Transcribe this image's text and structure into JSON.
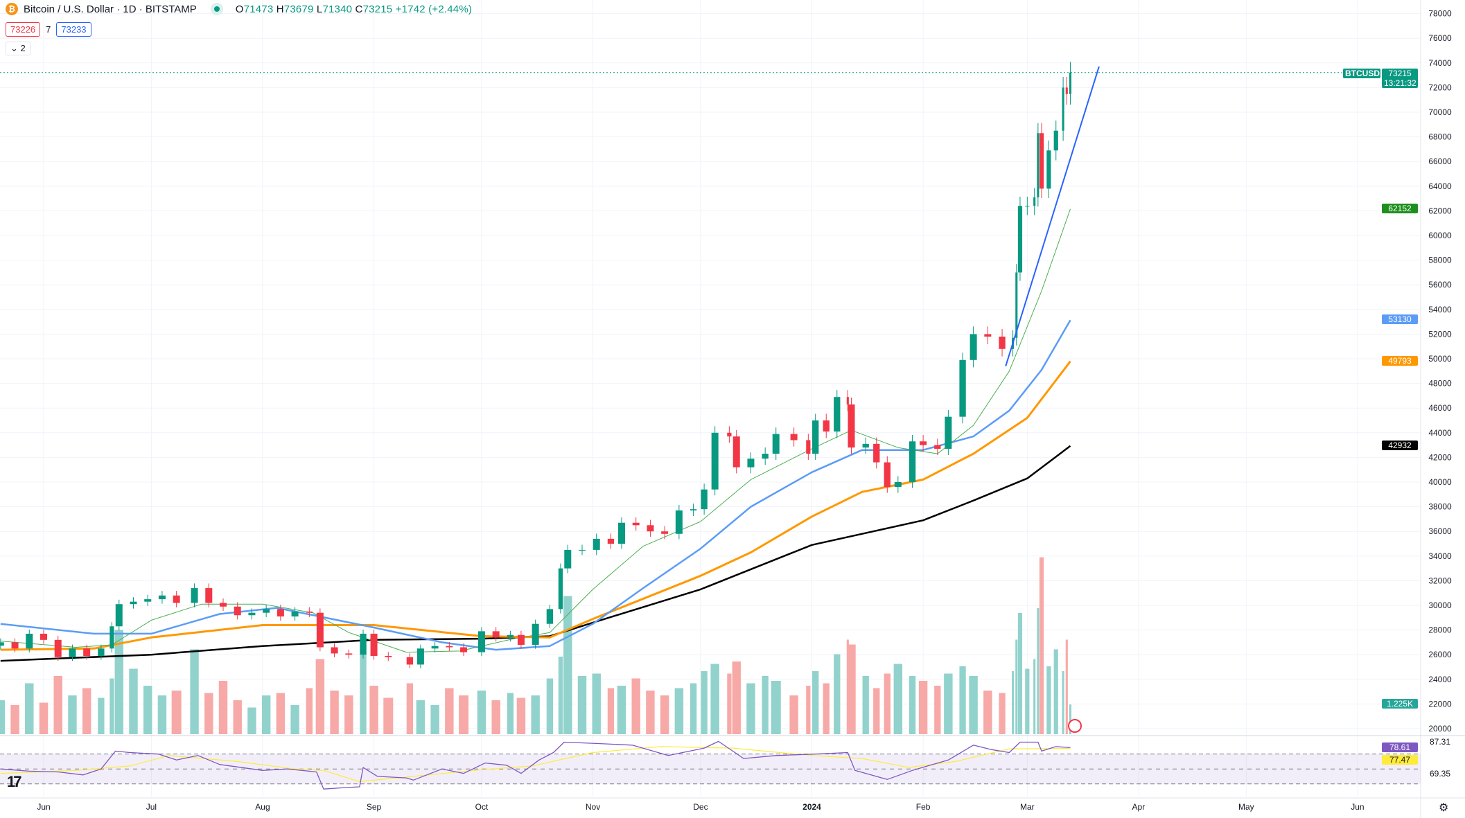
{
  "header": {
    "symbol_title": "Bitcoin / U.S. Dollar · 1D · BITSTAMP",
    "open_label": "O",
    "open": "71473",
    "high_label": "H",
    "high": "73679",
    "low_label": "L",
    "low": "71340",
    "close_label": "C",
    "close": "73215",
    "change": "+1742 (+2.44%)",
    "sell_price": "73226",
    "spread": "7",
    "buy_price": "73233",
    "collapse_label": "2",
    "logo_icon": "bitcoin-icon"
  },
  "colors": {
    "up": "#089981",
    "down": "#f23645",
    "vol_up": "#92d2cc",
    "vol_down": "#f7a9a7",
    "sma20": "#4caf50",
    "ma50": "#5b9cf6",
    "ma100": "#ff9800",
    "ma200": "#000000",
    "trendline": "#2962ff",
    "rsi": "#7e57c2",
    "rsi_ma": "#ffeb3b"
  },
  "badges": {
    "symbol": "BTCUSD",
    "last_price": "73215",
    "countdown": "13:21:32",
    "sma20": "62152",
    "ma50": "53130",
    "ma100": "49793",
    "ma200": "42932",
    "volume": "1.225K",
    "rsi_top": "87.31",
    "rsi": "78.61",
    "rsi_ma": "77.47",
    "rsi_bottom": "69.35"
  },
  "chart_data": {
    "type": "candlestick",
    "price_axis": {
      "ticks": [
        "20000",
        "22000",
        "24000",
        "26000",
        "28000",
        "30000",
        "32000",
        "34000",
        "36000",
        "38000",
        "40000",
        "42000",
        "44000",
        "46000",
        "48000",
        "50000",
        "52000",
        "54000",
        "56000",
        "58000",
        "60000",
        "62000",
        "64000",
        "66000",
        "68000",
        "70000",
        "72000",
        "74000",
        "76000",
        "78000"
      ],
      "range": [
        20000,
        78000
      ]
    },
    "time_axis": {
      "ticks": [
        [
          "2023-06-01",
          "Jun"
        ],
        [
          "2023-07-01",
          "Jul"
        ],
        [
          "2023-08-01",
          "Aug"
        ],
        [
          "2023-09-01",
          "Sep"
        ],
        [
          "2023-10-01",
          "Oct"
        ],
        [
          "2023-11-01",
          "Nov"
        ],
        [
          "2023-12-01",
          "Dec"
        ],
        [
          "2024-01-01",
          "2024"
        ],
        [
          "2024-02-01",
          "Feb"
        ],
        [
          "2024-03-01",
          "Mar"
        ],
        [
          "2024-04-01",
          "Apr"
        ],
        [
          "2024-05-01",
          "May"
        ],
        [
          "2024-06-01",
          "Jun"
        ]
      ]
    },
    "price": [
      [
        "2023-05-20",
        27000
      ],
      [
        "2023-05-24",
        26500
      ],
      [
        "2023-05-28",
        27700
      ],
      [
        "2023-06-01",
        27200
      ],
      [
        "2023-06-05",
        25800
      ],
      [
        "2023-06-09",
        26500
      ],
      [
        "2023-06-13",
        25900
      ],
      [
        "2023-06-17",
        26500
      ],
      [
        "2023-06-20",
        28300
      ],
      [
        "2023-06-22",
        30100
      ],
      [
        "2023-06-26",
        30300
      ],
      [
        "2023-06-30",
        30500
      ],
      [
        "2023-07-04",
        30800
      ],
      [
        "2023-07-08",
        30200
      ],
      [
        "2023-07-13",
        31400
      ],
      [
        "2023-07-17",
        30200
      ],
      [
        "2023-07-21",
        29900
      ],
      [
        "2023-07-25",
        29200
      ],
      [
        "2023-07-29",
        29400
      ],
      [
        "2023-08-02",
        29700
      ],
      [
        "2023-08-06",
        29100
      ],
      [
        "2023-08-10",
        29500
      ],
      [
        "2023-08-14",
        29400
      ],
      [
        "2023-08-17",
        26600
      ],
      [
        "2023-08-21",
        26100
      ],
      [
        "2023-08-25",
        26000
      ],
      [
        "2023-08-29",
        27700
      ],
      [
        "2023-09-01",
        25900
      ],
      [
        "2023-09-05",
        25800
      ],
      [
        "2023-09-11",
        25200
      ],
      [
        "2023-09-14",
        26500
      ],
      [
        "2023-09-18",
        26700
      ],
      [
        "2023-09-22",
        26600
      ],
      [
        "2023-09-26",
        26200
      ],
      [
        "2023-10-01",
        27900
      ],
      [
        "2023-10-05",
        27400
      ],
      [
        "2023-10-09",
        27600
      ],
      [
        "2023-10-12",
        26800
      ],
      [
        "2023-10-16",
        28500
      ],
      [
        "2023-10-20",
        29700
      ],
      [
        "2023-10-23",
        33000
      ],
      [
        "2023-10-25",
        34500
      ],
      [
        "2023-10-29",
        34500
      ],
      [
        "2023-11-02",
        35400
      ],
      [
        "2023-11-06",
        35000
      ],
      [
        "2023-11-09",
        36700
      ],
      [
        "2023-11-13",
        36500
      ],
      [
        "2023-11-17",
        36000
      ],
      [
        "2023-11-21",
        35800
      ],
      [
        "2023-11-25",
        37700
      ],
      [
        "2023-11-29",
        37800
      ],
      [
        "2023-12-02",
        39400
      ],
      [
        "2023-12-05",
        44000
      ],
      [
        "2023-12-09",
        43700
      ],
      [
        "2023-12-11",
        41200
      ],
      [
        "2023-12-15",
        41900
      ],
      [
        "2023-12-19",
        42300
      ],
      [
        "2023-12-22",
        43900
      ],
      [
        "2023-12-27",
        43400
      ],
      [
        "2023-12-31",
        42300
      ],
      [
        "2024-01-02",
        45000
      ],
      [
        "2024-01-05",
        44100
      ],
      [
        "2024-01-08",
        46900
      ],
      [
        "2024-01-11",
        46300
      ],
      [
        "2024-01-12",
        42800
      ],
      [
        "2024-01-16",
        43100
      ],
      [
        "2024-01-19",
        41600
      ],
      [
        "2024-01-22",
        39600
      ],
      [
        "2024-01-25",
        40000
      ],
      [
        "2024-01-29",
        43300
      ],
      [
        "2024-02-01",
        43000
      ],
      [
        "2024-02-05",
        42700
      ],
      [
        "2024-02-08",
        45300
      ],
      [
        "2024-02-12",
        49900
      ],
      [
        "2024-02-15",
        52000
      ],
      [
        "2024-02-19",
        51800
      ],
      [
        "2024-02-23",
        50800
      ],
      [
        "2024-02-26",
        51700
      ],
      [
        "2024-02-27",
        57000
      ],
      [
        "2024-02-28",
        62400
      ],
      [
        "2024-03-01",
        62400
      ],
      [
        "2024-03-03",
        63100
      ],
      [
        "2024-03-04",
        68300
      ],
      [
        "2024-03-05",
        63800
      ],
      [
        "2024-03-07",
        66900
      ],
      [
        "2024-03-09",
        68500
      ],
      [
        "2024-03-11",
        72000
      ],
      [
        "2024-03-12",
        71473
      ],
      [
        "2024-03-13",
        73215
      ]
    ],
    "volume_k": [
      1.4,
      1.2,
      2.1,
      1.3,
      2.4,
      1.6,
      1.9,
      1.5,
      2.3,
      4.3,
      2.7,
      2.0,
      1.6,
      1.8,
      3.5,
      1.7,
      2.2,
      1.4,
      1.1,
      1.6,
      1.7,
      1.2,
      1.9,
      3.1,
      1.8,
      1.6,
      3.7,
      2.0,
      1.5,
      2.1,
      1.4,
      1.2,
      1.9,
      1.6,
      1.8,
      1.4,
      1.7,
      1.5,
      1.6,
      2.3,
      3.2,
      5.7,
      2.4,
      2.5,
      1.9,
      2.0,
      2.3,
      1.8,
      1.6,
      1.9,
      2.1,
      2.6,
      2.9,
      2.5,
      3.0,
      2.1,
      2.4,
      2.2,
      1.6,
      2.0,
      2.6,
      2.1,
      3.3,
      3.9,
      3.7,
      2.4,
      1.9,
      2.5,
      2.9,
      2.4,
      2.2,
      2.0,
      2.5,
      2.8,
      2.4,
      1.8,
      1.7,
      2.6,
      3.9,
      5.0,
      2.7,
      3.1,
      5.2,
      7.3,
      2.8,
      3.5,
      2.6,
      3.9,
      1.225
    ],
    "sma20": [
      [
        "2023-05-20",
        27100
      ],
      [
        "2023-06-10",
        26600
      ],
      [
        "2023-06-20",
        26800
      ],
      [
        "2023-07-01",
        28800
      ],
      [
        "2023-07-15",
        30100
      ],
      [
        "2023-08-01",
        30100
      ],
      [
        "2023-08-15",
        29400
      ],
      [
        "2023-08-25",
        27800
      ],
      [
        "2023-09-10",
        26200
      ],
      [
        "2023-09-25",
        26300
      ],
      [
        "2023-10-10",
        27300
      ],
      [
        "2023-10-20",
        27800
      ],
      [
        "2023-11-01",
        31300
      ],
      [
        "2023-11-15",
        34800
      ],
      [
        "2023-12-01",
        36800
      ],
      [
        "2023-12-15",
        40200
      ],
      [
        "2024-01-01",
        42700
      ],
      [
        "2024-01-12",
        44200
      ],
      [
        "2024-01-25",
        42800
      ],
      [
        "2024-02-05",
        42300
      ],
      [
        "2024-02-15",
        44600
      ],
      [
        "2024-02-25",
        49000
      ],
      [
        "2024-03-05",
        55500
      ],
      [
        "2024-03-13",
        62152
      ]
    ],
    "ma50": [
      [
        "2023-05-20",
        28500
      ],
      [
        "2023-06-15",
        27700
      ],
      [
        "2023-07-01",
        27700
      ],
      [
        "2023-07-20",
        29300
      ],
      [
        "2023-08-05",
        29800
      ],
      [
        "2023-09-01",
        28200
      ],
      [
        "2023-09-20",
        27000
      ],
      [
        "2023-10-05",
        26400
      ],
      [
        "2023-10-20",
        26700
      ],
      [
        "2023-11-01",
        28500
      ],
      [
        "2023-11-15",
        31400
      ],
      [
        "2023-12-01",
        34600
      ],
      [
        "2023-12-15",
        38000
      ],
      [
        "2024-01-01",
        40800
      ],
      [
        "2024-01-15",
        42600
      ],
      [
        "2024-02-01",
        42600
      ],
      [
        "2024-02-15",
        43700
      ],
      [
        "2024-02-25",
        45800
      ],
      [
        "2024-03-05",
        49100
      ],
      [
        "2024-03-13",
        53130
      ]
    ],
    "ma100": [
      [
        "2023-05-20",
        26400
      ],
      [
        "2023-06-15",
        26500
      ],
      [
        "2023-07-01",
        27400
      ],
      [
        "2023-08-01",
        28400
      ],
      [
        "2023-09-01",
        28400
      ],
      [
        "2023-10-01",
        27500
      ],
      [
        "2023-10-20",
        27400
      ],
      [
        "2023-11-01",
        28900
      ],
      [
        "2023-12-01",
        32400
      ],
      [
        "2023-12-15",
        34300
      ],
      [
        "2024-01-01",
        37200
      ],
      [
        "2024-01-15",
        39200
      ],
      [
        "2024-02-01",
        40200
      ],
      [
        "2024-02-15",
        42300
      ],
      [
        "2024-03-01",
        45200
      ],
      [
        "2024-03-13",
        49793
      ]
    ],
    "ma200": [
      [
        "2023-05-20",
        25500
      ],
      [
        "2023-07-01",
        26000
      ],
      [
        "2023-08-01",
        26700
      ],
      [
        "2023-09-01",
        27200
      ],
      [
        "2023-10-01",
        27300
      ],
      [
        "2023-10-20",
        27500
      ],
      [
        "2023-11-01",
        28600
      ],
      [
        "2023-12-01",
        31300
      ],
      [
        "2024-01-01",
        34900
      ],
      [
        "2024-02-01",
        36900
      ],
      [
        "2024-02-15",
        38500
      ],
      [
        "2024-03-01",
        40300
      ],
      [
        "2024-03-13",
        42932
      ]
    ],
    "trendline": [
      [
        "2024-02-24",
        49400
      ],
      [
        "2024-03-21",
        73700
      ]
    ],
    "rsi": {
      "levels": [
        70,
        50,
        30
      ],
      "range": [
        13,
        92
      ],
      "values": [
        [
          "2023-05-20",
          50
        ],
        [
          "2023-05-28",
          47
        ],
        [
          "2023-06-05",
          46
        ],
        [
          "2023-06-12",
          42
        ],
        [
          "2023-06-17",
          50
        ],
        [
          "2023-06-21",
          74
        ],
        [
          "2023-06-25",
          72
        ],
        [
          "2023-07-03",
          70
        ],
        [
          "2023-07-08",
          62
        ],
        [
          "2023-07-14",
          68
        ],
        [
          "2023-07-20",
          56
        ],
        [
          "2023-08-01",
          48
        ],
        [
          "2023-08-08",
          50
        ],
        [
          "2023-08-16",
          46
        ],
        [
          "2023-08-18",
          23
        ],
        [
          "2023-08-24",
          25
        ],
        [
          "2023-08-28",
          26
        ],
        [
          "2023-08-29",
          52
        ],
        [
          "2023-09-02",
          40
        ],
        [
          "2023-09-10",
          38
        ],
        [
          "2023-09-12",
          35
        ],
        [
          "2023-09-20",
          50
        ],
        [
          "2023-09-26",
          44
        ],
        [
          "2023-10-02",
          58
        ],
        [
          "2023-10-08",
          55
        ],
        [
          "2023-10-12",
          44
        ],
        [
          "2023-10-17",
          62
        ],
        [
          "2023-10-21",
          72
        ],
        [
          "2023-10-24",
          86
        ],
        [
          "2023-11-03",
          84
        ],
        [
          "2023-11-12",
          82
        ],
        [
          "2023-11-22",
          68
        ],
        [
          "2023-12-02",
          78
        ],
        [
          "2023-12-06",
          87
        ],
        [
          "2023-12-13",
          64
        ],
        [
          "2023-12-22",
          68
        ],
        [
          "2024-01-02",
          70
        ],
        [
          "2024-01-11",
          72
        ],
        [
          "2024-01-13",
          48
        ],
        [
          "2024-01-22",
          36
        ],
        [
          "2024-01-29",
          48
        ],
        [
          "2024-02-08",
          62
        ],
        [
          "2024-02-15",
          82
        ],
        [
          "2024-02-20",
          76
        ],
        [
          "2024-02-25",
          72
        ],
        [
          "2024-02-28",
          86
        ],
        [
          "2024-03-04",
          86
        ],
        [
          "2024-03-05",
          74
        ],
        [
          "2024-03-09",
          80
        ],
        [
          "2024-03-13",
          78.61
        ]
      ],
      "ma": [
        [
          "2023-05-20",
          44
        ],
        [
          "2023-06-10",
          48
        ],
        [
          "2023-06-25",
          54
        ],
        [
          "2023-07-06",
          68
        ],
        [
          "2023-07-25",
          60
        ],
        [
          "2023-08-10",
          50
        ],
        [
          "2023-08-18",
          48
        ],
        [
          "2023-08-28",
          33
        ],
        [
          "2023-09-12",
          40
        ],
        [
          "2023-10-01",
          49
        ],
        [
          "2023-10-15",
          54
        ],
        [
          "2023-11-01",
          72
        ],
        [
          "2023-11-20",
          80
        ],
        [
          "2023-12-10",
          78
        ],
        [
          "2024-01-01",
          68
        ],
        [
          "2024-01-15",
          64
        ],
        [
          "2024-01-28",
          52
        ],
        [
          "2024-02-10",
          60
        ],
        [
          "2024-02-25",
          77
        ],
        [
          "2024-03-13",
          77.47
        ]
      ]
    }
  }
}
